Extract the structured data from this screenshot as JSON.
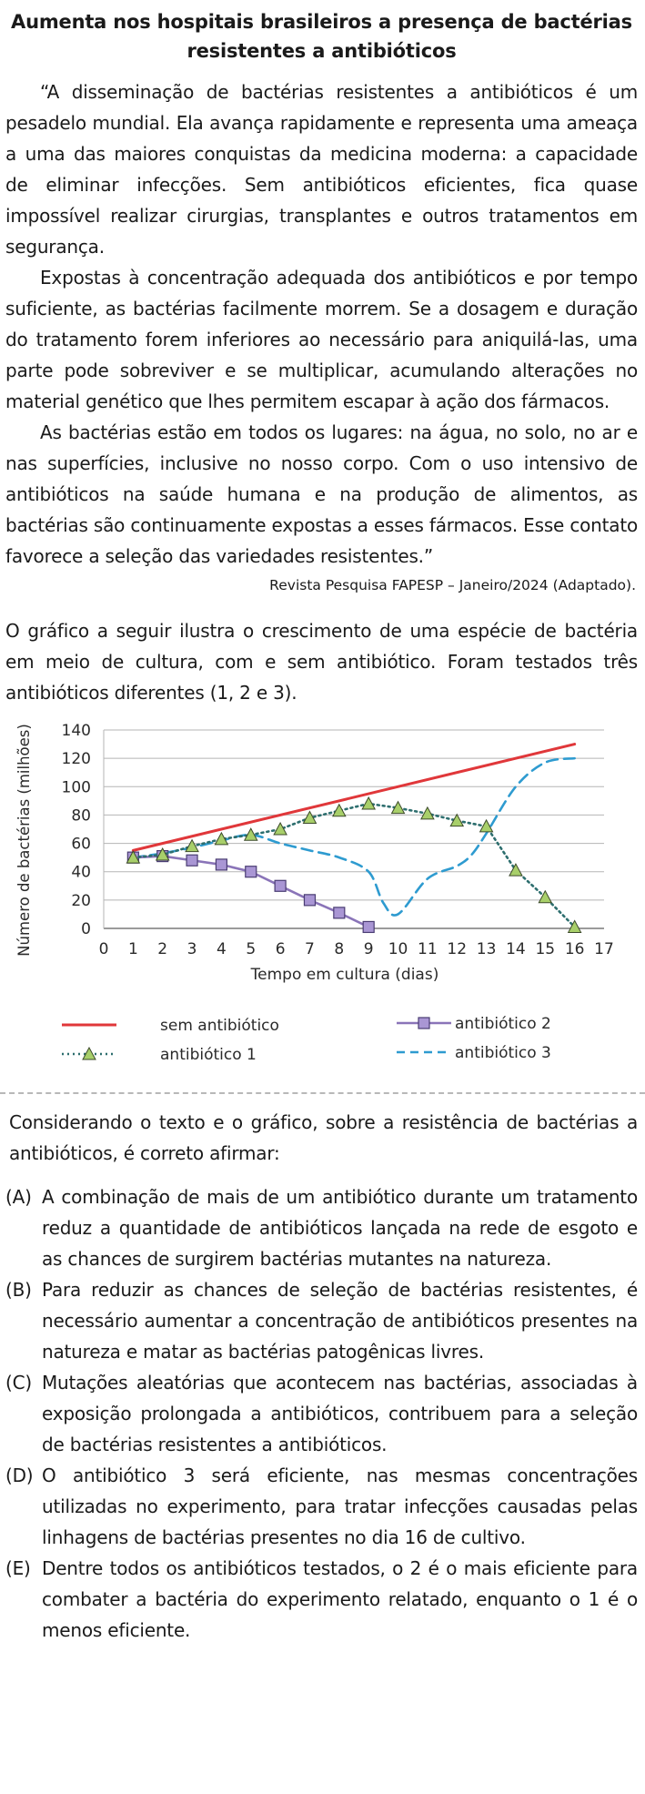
{
  "title": "Aumenta nos hospitais brasileiros a presença de bactérias resistentes a antibióticos",
  "article": {
    "paragraphs": [
      "“A disseminação de bactérias resistentes a antibióticos é um pesadelo mundial. Ela avança rapidamente e representa uma ameaça a uma das maiores conquistas da medicina moderna: a capacidade de eliminar infecções. Sem antibióticos eficientes, fica quase impossível realizar cirurgias, transplantes e outros tratamentos em segurança.",
      "Expostas à concentração adequada dos antibióticos e por tempo suficiente, as bactérias facilmente morrem. Se a dosagem e duração do tratamento forem inferiores ao necessário para aniquilá-las, uma parte pode sobreviver e se multiplicar, acumulando alterações no material genético que lhes permitem escapar à ação dos fármacos.",
      "As bactérias estão em todos os lugares: na água, no solo, no ar e nas superfícies, inclusive no nosso corpo. Com o uso intensivo de antibióticos na saúde humana e na produção de alimentos, as bactérias são continuamente expostas a esses fármacos. Esse contato favorece a seleção das variedades resistentes.”"
    ],
    "source": "Revista Pesquisa FAPESP – Janeiro/2024 (Adaptado)."
  },
  "intro": "O gráfico a seguir ilustra o crescimento de uma espécie de bactéria em meio de cultura, com e sem antibiótico. Foram testados três antibióticos diferentes (1, 2 e 3).",
  "chart_data": {
    "type": "line",
    "xlabel": "Tempo em cultura (dias)",
    "ylabel": "Número de bactérias (milhões)",
    "xlim": [
      0,
      17
    ],
    "ylim": [
      0,
      140
    ],
    "xticks": [
      0,
      1,
      2,
      3,
      4,
      5,
      6,
      7,
      8,
      9,
      10,
      11,
      12,
      13,
      14,
      15,
      16,
      17
    ],
    "yticks": [
      0,
      20,
      40,
      60,
      80,
      100,
      120,
      140
    ],
    "grid": "horizontal",
    "legend_position": "bottom",
    "series": [
      {
        "name": "sem antibiótico",
        "style": "solid",
        "color": "#e0373a",
        "x": [
          1,
          16
        ],
        "y": [
          55,
          130
        ]
      },
      {
        "name": "antibiótico 2",
        "style": "solid-square-markers",
        "color": "#8a74b8",
        "marker_fill": "#a996d4",
        "x": [
          1,
          2,
          3,
          4,
          5,
          6,
          7,
          8,
          9
        ],
        "y": [
          50,
          51,
          48,
          45,
          40,
          30,
          20,
          11,
          1
        ]
      },
      {
        "name": "antibiótico 1",
        "style": "dotted-triangle-markers",
        "color": "#2d6e6e",
        "marker_fill": "#a8cf6a",
        "x": [
          1,
          2,
          3,
          4,
          5,
          6,
          7,
          8,
          9,
          10,
          11,
          12,
          13,
          14,
          15,
          16
        ],
        "y": [
          50,
          52,
          58,
          63,
          66,
          70,
          78,
          83,
          88,
          85,
          81,
          76,
          72,
          41,
          22,
          1
        ]
      },
      {
        "name": "antibiótico 3",
        "style": "dashed",
        "color": "#2e9bd0",
        "x": [
          1,
          2,
          3,
          4,
          5,
          6,
          7,
          8,
          9,
          9.5,
          10,
          11,
          12,
          12.5,
          13,
          14,
          15,
          16
        ],
        "y": [
          50,
          53,
          57,
          62,
          66,
          60,
          55,
          50,
          40,
          18,
          10,
          35,
          44,
          52,
          67,
          100,
          117,
          120
        ]
      }
    ]
  },
  "question": "Considerando o texto e o gráfico, sobre a resistência de bactérias a antibióticos, é correto afirmar:",
  "options": [
    {
      "letter": "(A)",
      "text": "A combinação de mais de um antibiótico durante um tratamento reduz a quantidade de antibióticos lançada na rede de esgoto e as chances de surgirem bactérias mutantes na natureza."
    },
    {
      "letter": "(B)",
      "text": "Para reduzir as chances de seleção de bactérias resistentes, é necessário aumentar a concentração de antibióticos presentes na natureza e matar as bactérias patogênicas livres."
    },
    {
      "letter": "(C)",
      "text": "Mutações aleatórias que acontecem nas bactérias, associadas à exposição prolongada a antibióticos, contribuem para a seleção de bactérias resistentes a antibióticos."
    },
    {
      "letter": "(D)",
      "text": "O antibiótico 3 será eficiente, nas mesmas concentrações utilizadas no experimento, para tratar infecções causadas pelas linhagens de bactérias presentes no dia 16 de cultivo."
    },
    {
      "letter": "(E)",
      "text": "Dentre todos os antibióticos testados, o 2 é o mais eficiente para combater a bactéria do experimento relatado, enquanto o 1 é o menos eficiente."
    }
  ]
}
